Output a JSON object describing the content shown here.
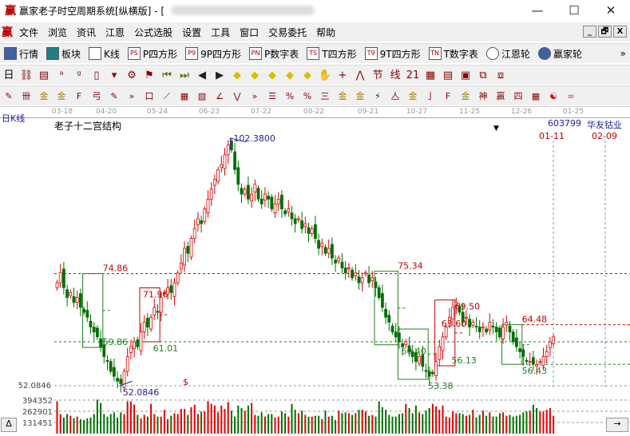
{
  "window": {
    "title": "赢家老子时空周期系统[纵横版] - [",
    "logo": "赢",
    "minimize": "—",
    "maximize": "☐",
    "close": "✕"
  },
  "menu": {
    "logo": "赢",
    "items": [
      "文件",
      "浏览",
      "资讯",
      "江恩",
      "公式选股",
      "设置",
      "工具",
      "窗口",
      "交易委托",
      "帮助"
    ],
    "mdi": [
      "_",
      "🗗",
      "X"
    ]
  },
  "toolbar1": {
    "items": [
      {
        "icon": "grid-icon",
        "label": "行情"
      },
      {
        "icon": "blocks-icon",
        "label": "板块"
      },
      {
        "icon": "candles-icon",
        "label": "K线"
      },
      {
        "icon": "PS",
        "label": "P四方形"
      },
      {
        "icon": "P9",
        "label": "9P四方形"
      },
      {
        "icon": "PN",
        "label": "P数字表"
      },
      {
        "icon": "TS",
        "label": "T四方形"
      },
      {
        "icon": "T9",
        "label": "9T四方形"
      },
      {
        "icon": "TN",
        "label": "T数字表"
      },
      {
        "icon": "gann-wheel-icon",
        "label": "江恩轮"
      },
      {
        "icon": "big-wheel-icon",
        "label": "赢家轮"
      }
    ],
    "more": "»"
  },
  "toolbar2": {
    "period": "日",
    "glyphs": [
      "⛓",
      "▤",
      "ᵃ",
      "ᵍ",
      "▯",
      "▾",
      "⚙",
      "⚑",
      "⏮",
      "⏭",
      "◀",
      "▶",
      "◆",
      "◆",
      "◆",
      "◆",
      "◆",
      "✋",
      "+",
      "⋀",
      "节",
      "线",
      "21",
      "▦",
      "▤",
      "▣",
      "⧉",
      "⧈"
    ]
  },
  "toolbar3": {
    "glyphs": [
      "✎",
      "卌",
      "金",
      "金",
      "F",
      "弓",
      "✎",
      "»",
      "口",
      "⟋",
      "▦",
      "▧",
      "∠",
      "⋁",
      "»",
      "☰",
      "%",
      "%",
      "三",
      "金",
      "金",
      "⚡",
      "亼",
      "金",
      "亅",
      "F",
      "金",
      "神",
      "赢",
      "四",
      "▦",
      "☯",
      "∞"
    ]
  },
  "axis": {
    "dates": [
      "03-18",
      "04-20",
      "05-24",
      "06-23",
      "07-22",
      "08-22",
      "09-21",
      "10-27",
      "11-25",
      "12-26",
      "01-25"
    ]
  },
  "chart_header": {
    "period_label": "日K线",
    "indicator": "老子十二宫结构",
    "code": "603799",
    "name": "华友钴业",
    "marker": "▼",
    "date_a": "01-11",
    "date_b": "02-09",
    "dollar": "$"
  },
  "chart_data": {
    "type": "candlestick",
    "price_range": [
      52.0846,
      102.38
    ],
    "close": [
      73,
      75,
      72,
      70,
      71,
      69,
      70,
      68,
      67,
      66,
      64,
      63,
      62,
      60,
      58,
      57,
      55,
      54,
      53,
      52.5,
      55,
      58,
      60,
      61,
      60,
      63,
      65,
      64,
      66,
      68,
      67,
      70,
      71,
      72,
      71,
      73,
      75,
      77,
      80,
      79,
      82,
      84,
      86,
      85,
      88,
      90,
      92,
      94,
      96,
      97,
      99,
      101,
      100,
      96,
      93,
      91,
      92,
      90,
      91,
      93,
      90,
      89,
      91,
      90,
      88,
      89,
      90,
      88,
      87,
      88,
      86,
      85,
      86,
      84,
      85,
      83,
      84,
      82,
      80,
      81,
      79,
      80,
      78,
      77,
      78,
      76,
      75,
      76,
      74,
      75,
      73,
      74,
      75,
      73,
      74,
      72,
      70,
      68,
      66,
      65,
      63,
      62,
      61,
      60,
      61,
      59,
      58,
      57,
      58,
      56,
      55,
      54,
      54.5,
      57,
      60,
      62,
      64,
      66,
      68,
      69,
      67,
      65,
      66,
      64,
      65,
      64,
      63,
      64,
      63,
      65,
      64,
      63,
      62,
      64,
      65,
      63,
      61,
      60,
      59,
      58,
      57,
      57,
      56.5,
      56.4,
      57,
      58,
      59,
      61,
      62
    ],
    "volume_ticks": [
      394352,
      262901,
      131451
    ],
    "volume": [
      380,
      230,
      190,
      230,
      210,
      180,
      200,
      170,
      160,
      180,
      190,
      230,
      400,
      360,
      230,
      200,
      230,
      250,
      190,
      250,
      230,
      380,
      380,
      340,
      220,
      180,
      220,
      200,
      350,
      230,
      200,
      200,
      280,
      170,
      210,
      240,
      230,
      290,
      290,
      220,
      310,
      340,
      230,
      260,
      260,
      380,
      350,
      330,
      250,
      330,
      290,
      370,
      270,
      200,
      330,
      300,
      270,
      330,
      360,
      220,
      210,
      250,
      200,
      230,
      230,
      190,
      200,
      260,
      240,
      200,
      350,
      280,
      240,
      270,
      220,
      200,
      200,
      210,
      210,
      170,
      270,
      200,
      210,
      160,
      270,
      240,
      250,
      240,
      220,
      240,
      280,
      280,
      260,
      210,
      220,
      200,
      380,
      310,
      280,
      220,
      200,
      200,
      230,
      240,
      350,
      300,
      240,
      330,
      250,
      230,
      270,
      300,
      350,
      320,
      280,
      330,
      200,
      190,
      260,
      240,
      240,
      230,
      210,
      220,
      280,
      190,
      220,
      270,
      210,
      250,
      200,
      200,
      240,
      250,
      210,
      220,
      200,
      210,
      220,
      250,
      260,
      270,
      340,
      300,
      260,
      260,
      280,
      300,
      210
    ],
    "labels": [
      {
        "text": "102.3800",
        "price": 102.38,
        "bar": 52,
        "color": "#2020a0"
      },
      {
        "text": "52.0846",
        "price": 52.0846,
        "bar": 19,
        "color": "#2020a0"
      },
      {
        "text": "74.86",
        "price": 74.86,
        "bar": 13,
        "color": "#c00000"
      },
      {
        "text": "71.96",
        "price": 71.96,
        "bar": 25,
        "color": "#c00000"
      },
      {
        "text": "59.86",
        "price": 59.86,
        "bar": 13,
        "color": "#208020"
      },
      {
        "text": "61.01",
        "price": 61.01,
        "bar": 28,
        "color": "#208020"
      },
      {
        "text": "75.34",
        "price": 75.34,
        "bar": 101,
        "color": "#c00000"
      },
      {
        "text": "69.50",
        "price": 69.5,
        "bar": 118,
        "color": "#c00000"
      },
      {
        "text": "63.60",
        "price": 63.6,
        "bar": 114,
        "color": "#c00000"
      },
      {
        "text": "60.40",
        "price": 60.4,
        "bar": 102,
        "color": "#208020"
      },
      {
        "text": "56.13",
        "price": 56.13,
        "bar": 117,
        "color": "#208020"
      },
      {
        "text": "53.38",
        "price": 53.38,
        "bar": 110,
        "color": "#208020"
      },
      {
        "text": "64.48",
        "price": 64.48,
        "bar": 138,
        "color": "#c00000"
      },
      {
        "text": "56.43",
        "price": 56.43,
        "bar": 138,
        "color": "#208020"
      }
    ],
    "boxes": [
      {
        "bars": [
          8,
          14
        ],
        "price": [
          59.86,
          74.86
        ],
        "color": "#208020"
      },
      {
        "bars": [
          25,
          31
        ],
        "price": [
          61.01,
          71.96
        ],
        "color": "#c00000"
      },
      {
        "bars": [
          95,
          102
        ],
        "price": [
          60.4,
          75.34
        ],
        "color": "#208020"
      },
      {
        "bars": [
          102,
          111
        ],
        "price": [
          53.38,
          63.6
        ],
        "color": "#208020"
      },
      {
        "bars": [
          113,
          119
        ],
        "price": [
          56.13,
          69.5
        ],
        "color": "#c00000"
      },
      {
        "bars": [
          133,
          139
        ],
        "price": [
          56.43,
          64.48
        ],
        "color": "#208020"
      }
    ],
    "hlines": [
      {
        "price": 74.86,
        "color": "#c00000"
      },
      {
        "price": 61.0,
        "color": "#208020"
      },
      {
        "price": 64.48,
        "color": "#c00000",
        "from_bar": 139
      },
      {
        "price": 56.43,
        "color": "#208020",
        "from_bar": 139
      },
      {
        "price": 52.0846,
        "color": "#999999",
        "text": "52.0846"
      }
    ],
    "up_color": "#e00000",
    "down_color": "#007000"
  },
  "bottom": {
    "left_button": "Δ",
    "right_button": "→"
  }
}
